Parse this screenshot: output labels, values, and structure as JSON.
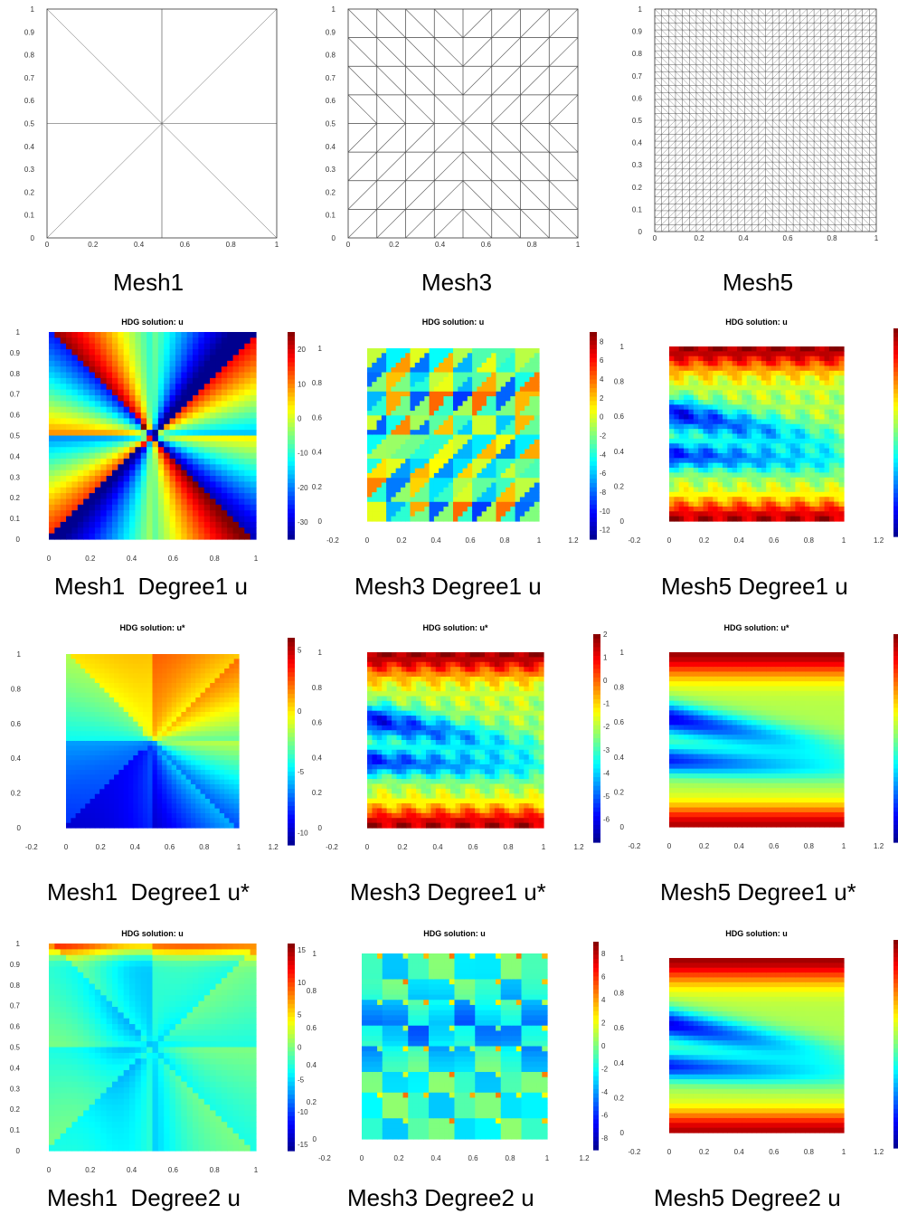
{
  "jet_colormap": [
    "#00008f",
    "#0000ff",
    "#007fff",
    "#00ffff",
    "#7fff7f",
    "#ffff00",
    "#ff7f00",
    "#ff0000",
    "#800000"
  ],
  "captions": {
    "mesh1": "Mesh1",
    "mesh3": "Mesh3",
    "mesh5": "Mesh5",
    "m1d1u": "Mesh1  Degree1 u",
    "m3d1u": "Mesh3 Degree1 u",
    "m5d1u": "Mesh5 Degree1 u",
    "m1d1us": "Mesh1  Degree1 u*",
    "m3d1us": "Mesh3 Degree1 u*",
    "m5d1us": "Mesh5 Degree1 u*",
    "m1d2u": "Mesh1  Degree2 u",
    "m3d2u": "Mesh3 Degree2 u",
    "m5d2u": "Mesh5 Degree2 u"
  },
  "chart_data": [
    {
      "id": "mesh1",
      "type": "mesh",
      "title": "",
      "xlim": [
        0,
        1
      ],
      "ylim": [
        0,
        1
      ],
      "xticks": [
        "0",
        "0.2",
        "0.4",
        "0.6",
        "0.8",
        "1"
      ],
      "yticks": [
        "0",
        "0.1",
        "0.2",
        "0.3",
        "0.4",
        "0.5",
        "0.6",
        "0.7",
        "0.8",
        "0.9",
        "1"
      ],
      "divisions": 2
    },
    {
      "id": "mesh3",
      "type": "mesh",
      "title": "",
      "xlim": [
        0,
        1
      ],
      "ylim": [
        0,
        1
      ],
      "xticks": [
        "0",
        "0.2",
        "0.4",
        "0.6",
        "0.8",
        "1"
      ],
      "yticks": [
        "0",
        "0.1",
        "0.2",
        "0.3",
        "0.4",
        "0.5",
        "0.6",
        "0.7",
        "0.8",
        "0.9",
        "1"
      ],
      "divisions": 8
    },
    {
      "id": "mesh5",
      "type": "mesh",
      "title": "",
      "xlim": [
        0,
        1
      ],
      "ylim": [
        0,
        1
      ],
      "xticks": [
        "0",
        "0.2",
        "0.4",
        "0.6",
        "0.8",
        "1"
      ],
      "yticks": [
        "0",
        "0.1",
        "0.2",
        "0.3",
        "0.4",
        "0.5",
        "0.6",
        "0.7",
        "0.8",
        "0.9",
        "1"
      ],
      "divisions": 32
    },
    {
      "id": "m1d1u",
      "type": "heatmap",
      "title": "HDG solution: u",
      "xlim": [
        0,
        1
      ],
      "ylim": [
        0,
        1
      ],
      "xticks": [
        "0",
        "0.2",
        "0.4",
        "0.6",
        "0.8",
        "1"
      ],
      "yticks": [
        "0",
        "0.1",
        "0.2",
        "0.3",
        "0.4",
        "0.5",
        "0.6",
        "0.7",
        "0.8",
        "0.9",
        "1"
      ],
      "colorbar_ticks": [
        "20",
        "10",
        "0",
        "-10",
        "-20",
        "-30"
      ],
      "colorbar_range": [
        -35,
        25
      ]
    },
    {
      "id": "m3d1u",
      "type": "heatmap",
      "title": "HDG solution: u",
      "xlim": [
        -0.2,
        1.2
      ],
      "ylim": [
        0,
        1
      ],
      "xticks": [
        "-0.2",
        "0",
        "0.2",
        "0.4",
        "0.6",
        "0.8",
        "1",
        "1.2"
      ],
      "yticks": [
        "0",
        "0.2",
        "0.4",
        "0.6",
        "0.8",
        "1"
      ],
      "colorbar_ticks": [
        "8",
        "6",
        "4",
        "2",
        "0",
        "-2",
        "-4",
        "-6",
        "-8",
        "-10",
        "-12"
      ],
      "colorbar_range": [
        -13,
        9
      ]
    },
    {
      "id": "m5d1u",
      "type": "heatmap",
      "title": "HDG solution: u",
      "xlim": [
        -0.2,
        1.2
      ],
      "ylim": [
        0,
        1
      ],
      "xticks": [
        "-0.2",
        "0",
        "0.2",
        "0.4",
        "0.6",
        "0.8",
        "1",
        "1.2"
      ],
      "yticks": [
        "0",
        "0.2",
        "0.4",
        "0.6",
        "0.8",
        "1"
      ],
      "colorbar_ticks": [],
      "colorbar_range": [
        0,
        1
      ]
    },
    {
      "id": "m1d1us",
      "type": "heatmap",
      "title": "HDG solution: u*",
      "xlim": [
        -0.2,
        1.2
      ],
      "ylim": [
        0,
        1
      ],
      "xticks": [
        "-0.2",
        "0",
        "0.2",
        "0.4",
        "0.6",
        "0.8",
        "1",
        "1.2"
      ],
      "yticks": [
        "0",
        "0.2",
        "0.4",
        "0.6",
        "0.8",
        "1"
      ],
      "colorbar_ticks": [
        "5",
        "0",
        "-5",
        "-10"
      ],
      "colorbar_range": [
        -11,
        6
      ]
    },
    {
      "id": "m3d1us",
      "type": "heatmap",
      "title": "HDG solution: u*",
      "xlim": [
        -0.2,
        1.2
      ],
      "ylim": [
        0,
        1
      ],
      "xticks": [
        "-0.2",
        "0",
        "0.2",
        "0.4",
        "0.6",
        "0.8",
        "1",
        "1.2"
      ],
      "yticks": [
        "0",
        "0.2",
        "0.4",
        "0.6",
        "0.8",
        "1"
      ],
      "colorbar_ticks": [
        "2",
        "1",
        "0",
        "-1",
        "-2",
        "-3",
        "-4",
        "-5",
        "-6"
      ],
      "colorbar_range": [
        -7,
        2
      ]
    },
    {
      "id": "m5d1us",
      "type": "heatmap",
      "title": "HDG solution: u*",
      "xlim": [
        -0.2,
        1.2
      ],
      "ylim": [
        0,
        1
      ],
      "xticks": [
        "-0.2",
        "0",
        "0.2",
        "0.4",
        "0.6",
        "0.8",
        "1",
        "1.2"
      ],
      "yticks": [
        "0",
        "0.2",
        "0.4",
        "0.6",
        "0.8",
        "1"
      ],
      "colorbar_ticks": [],
      "colorbar_range": [
        0,
        1
      ]
    },
    {
      "id": "m1d2u",
      "type": "heatmap",
      "title": "HDG solution: u",
      "xlim": [
        0,
        1
      ],
      "ylim": [
        0,
        1
      ],
      "xticks": [
        "0",
        "0.2",
        "0.4",
        "0.6",
        "0.8",
        "1"
      ],
      "yticks": [
        "0",
        "0.1",
        "0.2",
        "0.3",
        "0.4",
        "0.5",
        "0.6",
        "0.7",
        "0.8",
        "0.9",
        "1"
      ],
      "colorbar_ticks": [
        "15",
        "10",
        "5",
        "0",
        "-5",
        "-10",
        "-15"
      ],
      "colorbar_range": [
        -16,
        16
      ]
    },
    {
      "id": "m3d2u",
      "type": "heatmap",
      "title": "HDG solution: u",
      "xlim": [
        -0.2,
        1.2
      ],
      "ylim": [
        0,
        1
      ],
      "xticks": [
        "-0.2",
        "0",
        "0.2",
        "0.4",
        "0.6",
        "0.8",
        "1",
        "1.2"
      ],
      "yticks": [
        "0",
        "0.2",
        "0.4",
        "0.6",
        "0.8",
        "1"
      ],
      "colorbar_ticks": [
        "8",
        "6",
        "4",
        "2",
        "0",
        "-2",
        "-4",
        "-6",
        "-8"
      ],
      "colorbar_range": [
        -9,
        9
      ]
    },
    {
      "id": "m5d2u",
      "type": "heatmap",
      "title": "HDG solution: u",
      "xlim": [
        -0.2,
        1.2
      ],
      "ylim": [
        0,
        1
      ],
      "xticks": [
        "-0.2",
        "0",
        "0.2",
        "0.4",
        "0.6",
        "0.8",
        "1",
        "1.2"
      ],
      "yticks": [
        "0",
        "0.2",
        "0.4",
        "0.6",
        "0.8",
        "1"
      ],
      "colorbar_ticks": [],
      "colorbar_range": [
        0,
        1
      ]
    }
  ]
}
